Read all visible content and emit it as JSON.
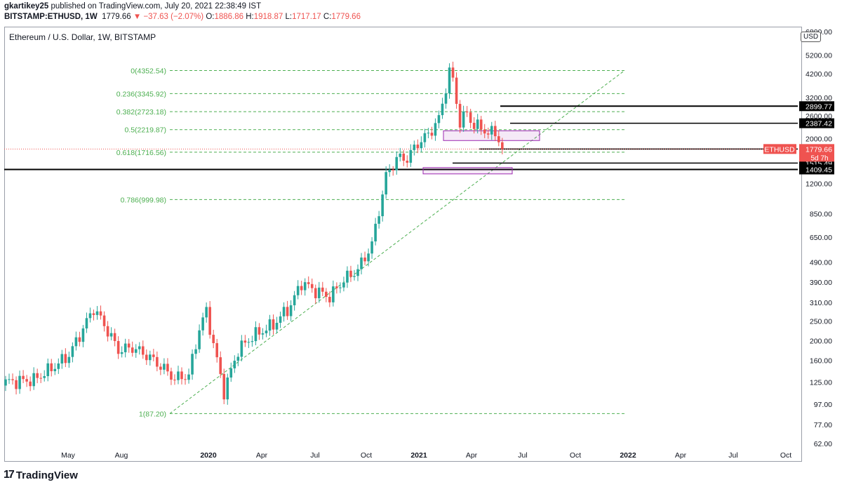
{
  "header": {
    "publisher": "gkartikey25",
    "published_text": " published on TradingView.com, July 20, 2021 22:38:49 IST",
    "symbol": "BITSTAMP:ETHUSD, 1W",
    "last": "1779.66",
    "change_arrow": "▼",
    "change": "−37.63 (−2.07%)",
    "o_label": "O:",
    "o": "1886.86",
    "h_label": "H:",
    "h": "1918.87",
    "l_label": "L:",
    "l": "1717.17",
    "c_label": "C:",
    "c": "1779.66"
  },
  "chart_title": "Ethereum / U.S. Dollar, 1W, BITSTAMP",
  "currency_badge": "USD",
  "footer": {
    "brand": "TradingView",
    "logo_icon": "tradingview-logo-icon"
  },
  "colors": {
    "up": "#26a69a",
    "down": "#ef5350",
    "fib": "#4caf50",
    "accent": "#ef5350",
    "box": "#9c27b0"
  },
  "chart_data": {
    "type": "candlestick",
    "scale": "log",
    "ylim": [
      55,
      7000
    ],
    "x_tick_labels": [
      "May",
      "Aug",
      "2020",
      "Apr",
      "Jul",
      "Oct",
      "2021",
      "Apr",
      "Jul",
      "Oct",
      "2022",
      "Apr",
      "Jul",
      "Oct"
    ],
    "y_tick_labels": [
      "6800.00",
      "5200.00",
      "4200.00",
      "3200.00",
      "2600.00",
      "2000.00",
      "1200.00",
      "850.00",
      "650.00",
      "490.00",
      "390.00",
      "310.00",
      "250.00",
      "200.00",
      "160.00",
      "125.00",
      "97.00",
      "77.00",
      "62.00"
    ],
    "y_tick_values": [
      6800,
      5200,
      4200,
      3200,
      2600,
      2000,
      1200,
      850,
      650,
      490,
      390,
      310,
      250,
      200,
      160,
      125,
      97,
      77,
      62
    ],
    "fib_levels": [
      {
        "label": "0(4352.54)",
        "value": 4352.54
      },
      {
        "label": "0.236(3345.92)",
        "value": 3345.92
      },
      {
        "label": "0.382(2723.18)",
        "value": 2723.18
      },
      {
        "label": "0.5(2219.87)",
        "value": 2219.87
      },
      {
        "label": "0.618(1716.56)",
        "value": 1716.56
      },
      {
        "label": "0.786(999.98)",
        "value": 999.98
      },
      {
        "label": "1(87.20)",
        "value": 87.2
      }
    ],
    "price_levels": [
      {
        "label": "2899.77",
        "value": 2899.77
      },
      {
        "label": "2387.42",
        "value": 2387.42
      },
      {
        "label": "1714.79",
        "value": 1714.79
      },
      {
        "label": "1515.49",
        "value": 1515.49
      },
      {
        "label": "1409.45",
        "value": 1409.45
      }
    ],
    "last_price": {
      "symbol": "ETHUSD",
      "value": 1779.66,
      "label": "1779.66",
      "countdown": "5d 7h"
    },
    "candles": []
  }
}
